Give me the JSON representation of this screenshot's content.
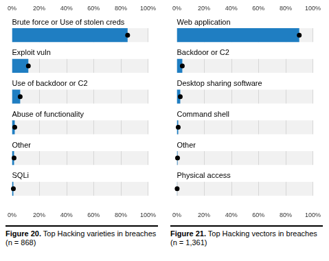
{
  "chart_data": [
    {
      "type": "bar",
      "orientation": "horizontal",
      "title": "Figure 20. Top Hacking varieties in breaches (n = 868)",
      "categories": [
        "Brute force or Use of stolen creds",
        "Exploit vuln",
        "Use of backdoor or C2",
        "Abuse of functionality",
        "Other",
        "SQLi"
      ],
      "values": [
        85,
        12,
        6,
        2,
        1.5,
        1
      ],
      "color": "#1f7ec2",
      "xlim": [
        0,
        100
      ],
      "xticks": [
        {
          "value": 0,
          "label": "0%"
        },
        {
          "value": 20,
          "label": "20%"
        },
        {
          "value": 40,
          "label": "40%"
        },
        {
          "value": 60,
          "label": "60%"
        },
        {
          "value": 80,
          "label": "80%"
        },
        {
          "value": 100,
          "label": "100%"
        }
      ],
      "grid": true
    },
    {
      "type": "bar",
      "orientation": "horizontal",
      "title": "Figure 21. Top Hacking vectors in breaches (n = 1,361)",
      "categories": [
        "Web application",
        "Backdoor or C2",
        "Desktop sharing software",
        "Command shell",
        "Other",
        "Physical access"
      ],
      "values": [
        90,
        4,
        2.5,
        1,
        0.5,
        0.2
      ],
      "color": "#1f7ec2",
      "xlim": [
        0,
        100
      ],
      "xticks": [
        {
          "value": 0,
          "label": "0%"
        },
        {
          "value": 20,
          "label": "20%"
        },
        {
          "value": 40,
          "label": "40%"
        },
        {
          "value": 60,
          "label": "60%"
        },
        {
          "value": 80,
          "label": "80%"
        },
        {
          "value": 100,
          "label": "100%"
        }
      ],
      "grid": true
    }
  ]
}
